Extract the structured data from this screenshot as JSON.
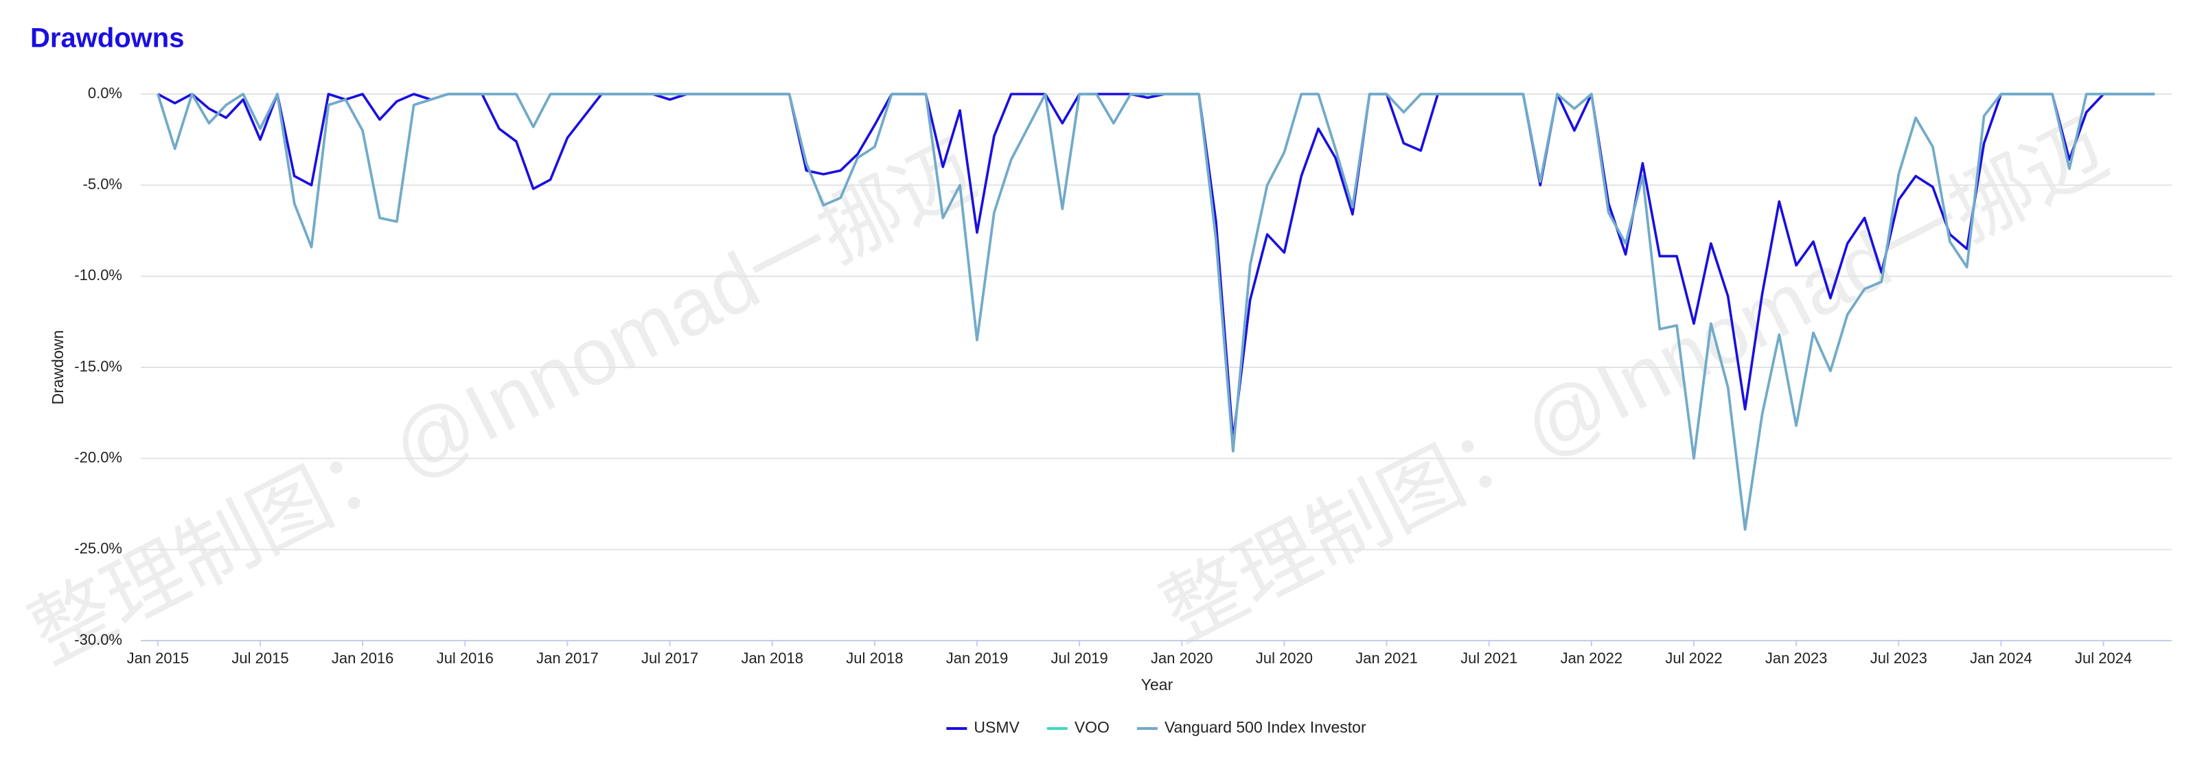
{
  "chart_data": {
    "type": "line",
    "title": "Drawdowns",
    "xlabel": "Year",
    "ylabel": "Drawdown",
    "watermarks": [
      "整理制图：@Innomad一挪迈",
      "整理制图：@Innomad一挪迈"
    ],
    "x": [
      "2015-01",
      "2015-02",
      "2015-03",
      "2015-04",
      "2015-05",
      "2015-06",
      "2015-07",
      "2015-08",
      "2015-09",
      "2015-10",
      "2015-11",
      "2015-12",
      "2016-01",
      "2016-02",
      "2016-03",
      "2016-04",
      "2016-05",
      "2016-06",
      "2016-07",
      "2016-08",
      "2016-09",
      "2016-10",
      "2016-11",
      "2016-12",
      "2017-01",
      "2017-02",
      "2017-03",
      "2017-04",
      "2017-05",
      "2017-06",
      "2017-07",
      "2017-08",
      "2017-09",
      "2017-10",
      "2017-11",
      "2017-12",
      "2018-01",
      "2018-02",
      "2018-03",
      "2018-04",
      "2018-05",
      "2018-06",
      "2018-07",
      "2018-08",
      "2018-09",
      "2018-10",
      "2018-11",
      "2018-12",
      "2019-01",
      "2019-02",
      "2019-03",
      "2019-04",
      "2019-05",
      "2019-06",
      "2019-07",
      "2019-08",
      "2019-09",
      "2019-10",
      "2019-11",
      "2019-12",
      "2020-01",
      "2020-02",
      "2020-03",
      "2020-04",
      "2020-05",
      "2020-06",
      "2020-07",
      "2020-08",
      "2020-09",
      "2020-10",
      "2020-11",
      "2020-12",
      "2021-01",
      "2021-02",
      "2021-03",
      "2021-04",
      "2021-05",
      "2021-06",
      "2021-07",
      "2021-08",
      "2021-09",
      "2021-10",
      "2021-11",
      "2021-12",
      "2022-01",
      "2022-02",
      "2022-03",
      "2022-04",
      "2022-05",
      "2022-06",
      "2022-07",
      "2022-08",
      "2022-09",
      "2022-10",
      "2022-11",
      "2022-12",
      "2023-01",
      "2023-02",
      "2023-03",
      "2023-04",
      "2023-05",
      "2023-06",
      "2023-07",
      "2023-08",
      "2023-09",
      "2023-10",
      "2023-11",
      "2023-12",
      "2024-01",
      "2024-02",
      "2024-03",
      "2024-04",
      "2024-05",
      "2024-06",
      "2024-07",
      "2024-08",
      "2024-09",
      "2024-10"
    ],
    "xlim": [
      "2014-12",
      "2024-11"
    ],
    "xticks": [
      {
        "value": "2015-01",
        "label": "Jan 2015"
      },
      {
        "value": "2015-07",
        "label": "Jul 2015"
      },
      {
        "value": "2016-01",
        "label": "Jan 2016"
      },
      {
        "value": "2016-07",
        "label": "Jul 2016"
      },
      {
        "value": "2017-01",
        "label": "Jan 2017"
      },
      {
        "value": "2017-07",
        "label": "Jul 2017"
      },
      {
        "value": "2018-01",
        "label": "Jan 2018"
      },
      {
        "value": "2018-07",
        "label": "Jul 2018"
      },
      {
        "value": "2019-01",
        "label": "Jan 2019"
      },
      {
        "value": "2019-07",
        "label": "Jul 2019"
      },
      {
        "value": "2020-01",
        "label": "Jan 2020"
      },
      {
        "value": "2020-07",
        "label": "Jul 2020"
      },
      {
        "value": "2021-01",
        "label": "Jan 2021"
      },
      {
        "value": "2021-07",
        "label": "Jul 2021"
      },
      {
        "value": "2022-01",
        "label": "Jan 2022"
      },
      {
        "value": "2022-07",
        "label": "Jul 2022"
      },
      {
        "value": "2023-01",
        "label": "Jan 2023"
      },
      {
        "value": "2023-07",
        "label": "Jul 2023"
      },
      {
        "value": "2024-01",
        "label": "Jan 2024"
      },
      {
        "value": "2024-07",
        "label": "Jul 2024"
      }
    ],
    "ylim": [
      -30,
      0
    ],
    "yticks": [
      {
        "value": 0,
        "label": "0.0%"
      },
      {
        "value": -5,
        "label": "-5.0%"
      },
      {
        "value": -10,
        "label": "-10.0%"
      },
      {
        "value": -15,
        "label": "-15.0%"
      },
      {
        "value": -20,
        "label": "-20.0%"
      },
      {
        "value": -25,
        "label": "-25.0%"
      },
      {
        "value": -30,
        "label": "-30.0%"
      }
    ],
    "grid": true,
    "legend": "bottom",
    "series": [
      {
        "name": "USMV",
        "color": "#1a0fe0",
        "values": [
          0,
          -0.5,
          0,
          -0.8,
          -1.3,
          -0.3,
          -2.5,
          0,
          -4.5,
          -5.0,
          0,
          -0.3,
          0,
          -1.4,
          -0.4,
          0,
          -0.3,
          0,
          0,
          0,
          -1.9,
          -2.6,
          -5.2,
          -4.7,
          -2.4,
          -1.2,
          0,
          0,
          0,
          0,
          -0.3,
          0,
          0,
          0,
          0,
          0,
          0,
          0,
          -4.2,
          -4.4,
          -4.2,
          -3.3,
          -1.7,
          0,
          0,
          0,
          -4.0,
          -0.9,
          -7.6,
          -2.3,
          0,
          0,
          0,
          -1.6,
          0,
          0,
          0,
          0,
          -0.2,
          0,
          0,
          0,
          -7.0,
          -19.0,
          -11.3,
          -7.7,
          -8.7,
          -4.5,
          -1.9,
          -3.5,
          -6.6,
          0,
          0,
          -2.7,
          -3.1,
          0,
          0,
          0,
          0,
          0,
          0,
          -5.0,
          0,
          -2.0,
          0,
          -6.0,
          -8.8,
          -3.8,
          -8.9,
          -8.9,
          -12.6,
          -8.2,
          -11.1,
          -17.3,
          -11.0,
          -5.9,
          -9.4,
          -8.1,
          -11.2,
          -8.2,
          -6.8,
          -9.8,
          -5.8,
          -4.5,
          -5.1,
          -7.7,
          -8.5,
          -2.7,
          0,
          0,
          0,
          0,
          -3.6,
          -1.0,
          0,
          0,
          0,
          0
        ]
      },
      {
        "name": "VOO",
        "color": "#3fd9c2",
        "values": [
          0,
          -3.0,
          0,
          -1.6,
          -0.6,
          0,
          -1.9,
          0,
          -6.0,
          -8.4,
          -0.6,
          -0.3,
          -2.0,
          -6.8,
          -7.0,
          -0.6,
          -0.3,
          0,
          0,
          0,
          0,
          0,
          -1.8,
          0,
          0,
          0,
          0,
          0,
          0,
          0,
          0,
          0,
          0,
          0,
          0,
          0,
          0,
          0,
          -3.8,
          -6.1,
          -5.7,
          -3.5,
          -2.9,
          0,
          0,
          0,
          -6.8,
          -5.0,
          -13.5,
          -6.5,
          -3.6,
          -1.8,
          0,
          -6.3,
          0,
          0,
          -1.6,
          0,
          0,
          0,
          0,
          0,
          -8.0,
          -19.6,
          -9.4,
          -5.0,
          -3.2,
          0,
          0,
          -3.0,
          -6.2,
          0,
          0,
          -1.0,
          0,
          0,
          0,
          0,
          0,
          0,
          0,
          -4.8,
          0,
          -0.8,
          0,
          -6.5,
          -8.2,
          -4.5,
          -12.9,
          -12.7,
          -20.0,
          -12.6,
          -16.1,
          -23.9,
          -17.6,
          -13.2,
          -18.2,
          -13.1,
          -15.2,
          -12.1,
          -10.7,
          -10.3,
          -4.4,
          -1.3,
          -2.9,
          -8.1,
          -9.5,
          -1.2,
          0,
          0,
          0,
          0,
          -4.1,
          0,
          0,
          0,
          0,
          0
        ]
      },
      {
        "name": "Vanguard 500 Index Investor",
        "color": "#74a9c9",
        "values": [
          0,
          -3.0,
          0,
          -1.6,
          -0.6,
          0,
          -1.9,
          0,
          -6.0,
          -8.4,
          -0.6,
          -0.3,
          -2.0,
          -6.8,
          -7.0,
          -0.6,
          -0.3,
          0,
          0,
          0,
          0,
          0,
          -1.8,
          0,
          0,
          0,
          0,
          0,
          0,
          0,
          0,
          0,
          0,
          0,
          0,
          0,
          0,
          0,
          -3.8,
          -6.1,
          -5.7,
          -3.5,
          -2.9,
          0,
          0,
          0,
          -6.8,
          -5.0,
          -13.5,
          -6.5,
          -3.6,
          -1.8,
          0,
          -6.3,
          0,
          0,
          -1.6,
          0,
          0,
          0,
          0,
          0,
          -8.0,
          -19.6,
          -9.4,
          -5.0,
          -3.2,
          0,
          0,
          -3.0,
          -6.2,
          0,
          0,
          -1.0,
          0,
          0,
          0,
          0,
          0,
          0,
          0,
          -4.8,
          0,
          -0.8,
          0,
          -6.5,
          -8.2,
          -4.5,
          -12.9,
          -12.7,
          -20.0,
          -12.6,
          -16.1,
          -23.9,
          -17.6,
          -13.2,
          -18.2,
          -13.1,
          -15.2,
          -12.1,
          -10.7,
          -10.3,
          -4.4,
          -1.3,
          -2.9,
          -8.1,
          -9.5,
          -1.2,
          0,
          0,
          0,
          0,
          -4.1,
          0,
          0,
          0,
          0,
          0
        ]
      }
    ]
  }
}
